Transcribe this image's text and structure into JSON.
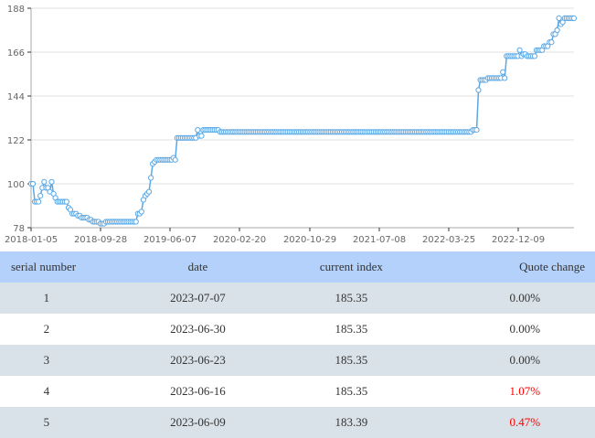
{
  "chart_data": {
    "type": "line",
    "title": "",
    "xlabel": "",
    "ylabel": "",
    "ylim": [
      78,
      188
    ],
    "y_ticks": [
      "78",
      "100",
      "122",
      "144",
      "166",
      "188"
    ],
    "x_ticks": [
      "2018-01-05",
      "2018-09-28",
      "2019-06-07",
      "2020-02-20",
      "2020-10-29",
      "2021-07-08",
      "2022-03-25",
      "2022-12-09"
    ],
    "grid": true,
    "line_color": "#5aa8e6",
    "marker": "hollow-circle",
    "series": [
      {
        "name": "current index",
        "x_range": [
          "2018-01-05",
          "2023-07-07"
        ],
        "approx_values": [
          100,
          100,
          91,
          91,
          91,
          94,
          98,
          101,
          98,
          98,
          96,
          101,
          95,
          93,
          91,
          91,
          91,
          91,
          91,
          91,
          88,
          87,
          85,
          85,
          85,
          84,
          84,
          83,
          83,
          83,
          83,
          82,
          82,
          81,
          81,
          81,
          81,
          80,
          80,
          80,
          81,
          81,
          81,
          81,
          81,
          81,
          81,
          81,
          81,
          81,
          81,
          81,
          81,
          81,
          81,
          81,
          81,
          85,
          85,
          86,
          92,
          94,
          95,
          96,
          103,
          110,
          111,
          112,
          112,
          112,
          112,
          112,
          112,
          112,
          112,
          112,
          113,
          112,
          123,
          123,
          123,
          123,
          123,
          123,
          123,
          123,
          123,
          123,
          123,
          127,
          124,
          124,
          127,
          127,
          127,
          127,
          127,
          127,
          127,
          127,
          127,
          126,
          126,
          126,
          126,
          126,
          126,
          126,
          126,
          126,
          126,
          126,
          126,
          126,
          126,
          126,
          126,
          126,
          126,
          126,
          126,
          126,
          126,
          126,
          126,
          126,
          126,
          126,
          126,
          126,
          126,
          126,
          126,
          126,
          126,
          126,
          126,
          126,
          126,
          126,
          126,
          126,
          126,
          126,
          126,
          126,
          126,
          126,
          126,
          126,
          126,
          126,
          126,
          126,
          126,
          126,
          126,
          126,
          126,
          126,
          126,
          126,
          126,
          126,
          126,
          126,
          126,
          126,
          126,
          126,
          126,
          126,
          126,
          126,
          126,
          126,
          126,
          126,
          126,
          126,
          126,
          126,
          126,
          126,
          126,
          126,
          126,
          126,
          126,
          126,
          126,
          126,
          126,
          126,
          126,
          126,
          126,
          126,
          126,
          126,
          126,
          126,
          126,
          126,
          126,
          126,
          126,
          126,
          126,
          126,
          126,
          126,
          126,
          126,
          126,
          126,
          126,
          126,
          126,
          126,
          126,
          126,
          126,
          126,
          126,
          126,
          126,
          126,
          126,
          126,
          126,
          126,
          126,
          126,
          126,
          126,
          127,
          127,
          127,
          147,
          152,
          152,
          152,
          152,
          153,
          153,
          153,
          153,
          153,
          153,
          153,
          153,
          156,
          153,
          164,
          164,
          164,
          164,
          164,
          164,
          164,
          167,
          164,
          165,
          165,
          164,
          164,
          164,
          164,
          164,
          167,
          167,
          167,
          167,
          169,
          169,
          169,
          171,
          171,
          175,
          175,
          177,
          183,
          180,
          181,
          183,
          183,
          183,
          183,
          183,
          183
        ]
      }
    ]
  },
  "table": {
    "headers": [
      "serial number",
      "date",
      "current index",
      "Quote change"
    ],
    "rows": [
      {
        "serial": "1",
        "date": "2023-07-07",
        "index": "185.35",
        "change": "0.00%",
        "trend": "flat"
      },
      {
        "serial": "2",
        "date": "2023-06-30",
        "index": "185.35",
        "change": "0.00%",
        "trend": "flat"
      },
      {
        "serial": "3",
        "date": "2023-06-23",
        "index": "185.35",
        "change": "0.00%",
        "trend": "flat"
      },
      {
        "serial": "4",
        "date": "2023-06-16",
        "index": "185.35",
        "change": "1.07%",
        "trend": "up"
      },
      {
        "serial": "5",
        "date": "2023-06-09",
        "index": "183.39",
        "change": "0.47%",
        "trend": "up"
      }
    ]
  }
}
